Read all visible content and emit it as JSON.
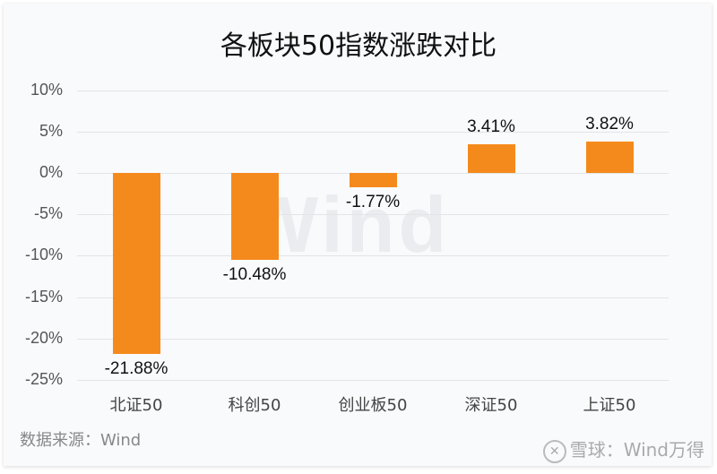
{
  "chart_data": {
    "type": "bar",
    "title": "各板块50指数涨跌对比",
    "categories": [
      "北证50",
      "科创50",
      "创业板50",
      "深证50",
      "上证50"
    ],
    "values": [
      -21.88,
      -10.48,
      -1.77,
      3.41,
      3.82
    ],
    "value_labels": [
      "-21.88%",
      "-10.48%",
      "-1.77%",
      "3.41%",
      "3.82%"
    ],
    "xlabel": "",
    "ylabel": "",
    "ylim": [
      -25,
      10
    ],
    "yticks": [
      "10%",
      "5%",
      "0%",
      "-5%",
      "-10%",
      "-15%",
      "-20%",
      "-25%"
    ],
    "grid": true,
    "legend": "none",
    "bar_color": "#f58a1c"
  },
  "footer": {
    "source": "数据来源：Wind",
    "watermark_center": "Wind",
    "watermark_corner": "雪球：Wind万得",
    "logo_glyph": "✕"
  }
}
